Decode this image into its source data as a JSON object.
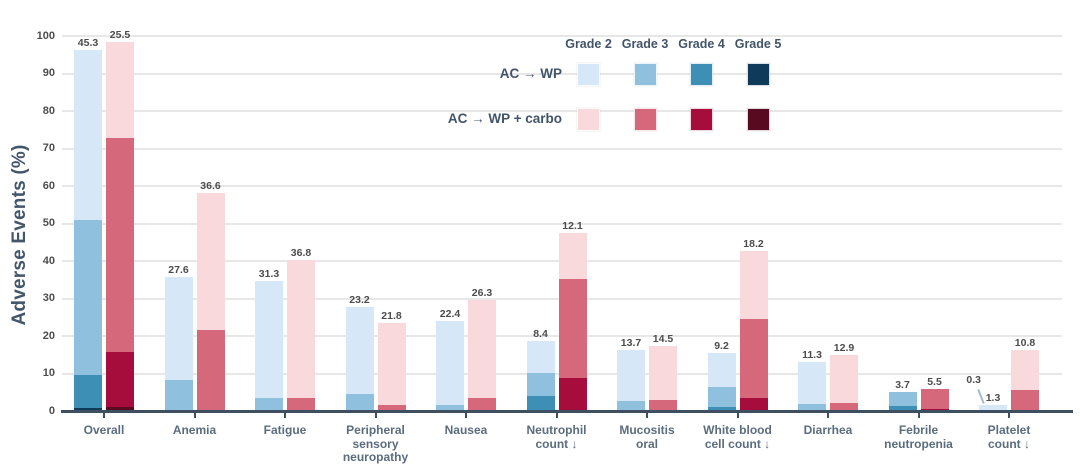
{
  "chart_data": {
    "type": "bar",
    "variant": "grouped-stacked",
    "ylabel": "Adverse Events (%)",
    "ylim": [
      0,
      100
    ],
    "yticks": [
      0,
      10,
      20,
      30,
      40,
      50,
      60,
      70,
      80,
      90,
      100
    ],
    "grid": true,
    "legend": {
      "position": "top-right",
      "grade_headers": [
        "Grade 2",
        "Grade 3",
        "Grade 4",
        "Grade 5"
      ],
      "arms": [
        {
          "name": "AC → WP",
          "colors": [
            "#d6e8f7",
            "#8fc0de",
            "#3e8fb5",
            "#0f3a5a"
          ]
        },
        {
          "name": "AC → WP + carbo",
          "colors": [
            "#f9d9db",
            "#d5687a",
            "#a60d3c",
            "#570a20"
          ]
        }
      ]
    },
    "groups": [
      {
        "category": "Overall",
        "lines": [
          "Overall"
        ],
        "bars": [
          {
            "arm": "AC → WP",
            "segments": [
              {
                "grade": "Grade 5",
                "value": 0.8,
                "label_mode": "inside-white"
              },
              {
                "grade": "Grade 4",
                "value": 8.9
              },
              {
                "grade": "Grade 3",
                "value": 41.3
              },
              {
                "grade": "Grade 2",
                "value": 45.3
              }
            ]
          },
          {
            "arm": "AC → WP + carbo",
            "segments": [
              {
                "grade": "Grade 5",
                "value": 1.1,
                "label_mode": "inside-white"
              },
              {
                "grade": "Grade 4",
                "value": 14.7
              },
              {
                "grade": "Grade 3",
                "value": 57.1
              },
              {
                "grade": "Grade 2",
                "value": 25.5
              }
            ]
          }
        ]
      },
      {
        "category": "Anemia",
        "lines": [
          "Anemia"
        ],
        "bars": [
          {
            "arm": "AC → WP",
            "segments": [
              {
                "grade": "Grade 3",
                "value": 8.2
              },
              {
                "grade": "Grade 2",
                "value": 27.6
              }
            ]
          },
          {
            "arm": "AC → WP + carbo",
            "segments": [
              {
                "grade": "Grade 3",
                "value": 21.6
              },
              {
                "grade": "Grade 2",
                "value": 36.6
              }
            ]
          }
        ]
      },
      {
        "category": "Fatigue",
        "lines": [
          "Fatigue"
        ],
        "bars": [
          {
            "arm": "AC → WP",
            "segments": [
              {
                "grade": "Grade 3",
                "value": 3.4
              },
              {
                "grade": "Grade 2",
                "value": 31.3
              }
            ]
          },
          {
            "arm": "AC → WP + carbo",
            "segments": [
              {
                "grade": "Grade 3",
                "value": 3.4
              },
              {
                "grade": "Grade 2",
                "value": 36.8
              }
            ]
          }
        ]
      },
      {
        "category": "Peripheral sensory neuropathy",
        "lines": [
          "Peripheral",
          "sensory",
          "neuropathy"
        ],
        "bars": [
          {
            "arm": "AC → WP",
            "segments": [
              {
                "grade": "Grade 3",
                "value": 4.5
              },
              {
                "grade": "Grade 2",
                "value": 23.2
              }
            ]
          },
          {
            "arm": "AC → WP + carbo",
            "segments": [
              {
                "grade": "Grade 3",
                "value": 1.6
              },
              {
                "grade": "Grade 2",
                "value": 21.8
              }
            ]
          }
        ]
      },
      {
        "category": "Nausea",
        "lines": [
          "Nausea"
        ],
        "bars": [
          {
            "arm": "AC → WP",
            "segments": [
              {
                "grade": "Grade 3",
                "value": 1.6
              },
              {
                "grade": "Grade 2",
                "value": 22.4
              }
            ]
          },
          {
            "arm": "AC → WP + carbo",
            "segments": [
              {
                "grade": "Grade 3",
                "value": 3.4
              },
              {
                "grade": "Grade 2",
                "value": 26.3
              }
            ]
          }
        ]
      },
      {
        "category": "Neutrophil count ↓",
        "lines": [
          "Neutrophil",
          "count ↓"
        ],
        "bars": [
          {
            "arm": "AC → WP",
            "segments": [
              {
                "grade": "Grade 4",
                "value": 3.9
              },
              {
                "grade": "Grade 3",
                "value": 6.3
              },
              {
                "grade": "Grade 2",
                "value": 8.4
              }
            ]
          },
          {
            "arm": "AC → WP + carbo",
            "segments": [
              {
                "grade": "Grade 4",
                "value": 8.7
              },
              {
                "grade": "Grade 3",
                "value": 26.6
              },
              {
                "grade": "Grade 2",
                "value": 12.1
              }
            ]
          }
        ]
      },
      {
        "category": "Mucositis oral",
        "lines": [
          "Mucositis",
          "oral"
        ],
        "bars": [
          {
            "arm": "AC → WP",
            "segments": [
              {
                "grade": "Grade 3",
                "value": 2.6
              },
              {
                "grade": "Grade 2",
                "value": 13.7
              }
            ]
          },
          {
            "arm": "AC → WP + carbo",
            "segments": [
              {
                "grade": "Grade 3",
                "value": 2.9
              },
              {
                "grade": "Grade 2",
                "value": 14.5
              }
            ]
          }
        ]
      },
      {
        "category": "White blood cell count ↓",
        "lines": [
          "White blood",
          "cell count ↓"
        ],
        "bars": [
          {
            "arm": "AC → WP",
            "segments": [
              {
                "grade": "Grade 4",
                "value": 1.1
              },
              {
                "grade": "Grade 3",
                "value": 5.3
              },
              {
                "grade": "Grade 2",
                "value": 9.2
              }
            ]
          },
          {
            "arm": "AC → WP + carbo",
            "segments": [
              {
                "grade": "Grade 4",
                "value": 3.4
              },
              {
                "grade": "Grade 3",
                "value": 21.1
              },
              {
                "grade": "Grade 2",
                "value": 18.2
              }
            ]
          }
        ]
      },
      {
        "category": "Diarrhea",
        "lines": [
          "Diarrhea"
        ],
        "bars": [
          {
            "arm": "AC → WP",
            "segments": [
              {
                "grade": "Grade 3",
                "value": 1.8
              },
              {
                "grade": "Grade 2",
                "value": 11.3
              }
            ]
          },
          {
            "arm": "AC → WP + carbo",
            "segments": [
              {
                "grade": "Grade 3",
                "value": 2.1
              },
              {
                "grade": "Grade 2",
                "value": 12.9
              }
            ]
          }
        ]
      },
      {
        "category": "Febrile neutropenia",
        "lines": [
          "Febrile",
          "neutropenia"
        ],
        "bars": [
          {
            "arm": "AC → WP",
            "segments": [
              {
                "grade": "Grade 4",
                "value": 1.3
              },
              {
                "grade": "Grade 3",
                "value": 3.7
              }
            ]
          },
          {
            "arm": "AC → WP + carbo",
            "segments": [
              {
                "grade": "Grade 4",
                "value": 0.5
              },
              {
                "grade": "Grade 3",
                "value": 5.5
              }
            ]
          }
        ]
      },
      {
        "category": "Platelet count ↓",
        "lines": [
          "Platelet",
          "count ↓"
        ],
        "bars": [
          {
            "arm": "AC → WP",
            "segments": [
              {
                "grade": "Grade 3",
                "value": 0.3,
                "label_mode": "callout-left"
              },
              {
                "grade": "Grade 2",
                "value": 1.3
              }
            ]
          },
          {
            "arm": "AC → WP + carbo",
            "segments": [
              {
                "grade": "Grade 3",
                "value": 5.5
              },
              {
                "grade": "Grade 2",
                "value": 10.8
              }
            ]
          }
        ]
      }
    ]
  },
  "colors": {
    "axis": "#3d4f61",
    "grid": "#e7e7e7",
    "value_label": "#4c4c4c",
    "value_label_inverse": "#ffffff",
    "category_label": "#5b6c7e",
    "ytick_label": "#4d4d4d",
    "title_text": "#44566b",
    "callout_line": "#a3bccd",
    "background": "#ffffff"
  }
}
